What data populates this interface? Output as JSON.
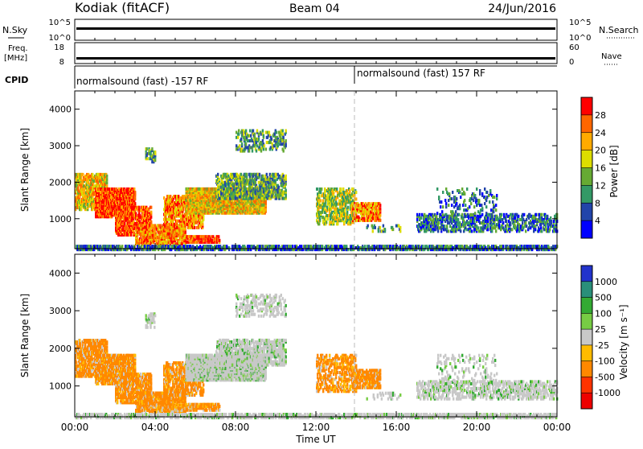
{
  "header": {
    "station": "Kodiak (fitACF)",
    "beam": "Beam 04",
    "date": "24/Jun/2016"
  },
  "panels": {
    "nsky_label": "N.Sky",
    "nsky_ticks": [
      "10^5",
      "10^0"
    ],
    "nsearch_label": "N.Search",
    "nsearch_ticks": [
      "10^5",
      "10^0"
    ],
    "freq_label": "Freq.",
    "freq_unit": "[MHz]",
    "freq_ticks": [
      "18",
      "8"
    ],
    "nave_label": "Nave",
    "nave_ticks": [
      "60",
      "0"
    ],
    "cpid_label": "CPID",
    "cpid_segments": [
      "normalsound (fast) -157 RF",
      "normalsound (fast) 157 RF"
    ]
  },
  "chart_data": [
    {
      "type": "heatmap",
      "name": "power",
      "ylabel": "Slant Range [km]",
      "yticks": [
        "4000",
        "3000",
        "2000",
        "1000"
      ],
      "ylim": [
        180,
        4500
      ],
      "colorbar_label": "Power [dB]",
      "colorbar_ticks": [
        "28",
        "24",
        "20",
        "16",
        "12",
        "8",
        "4"
      ],
      "colorbar_colors": [
        "#ff0000",
        "#ff6600",
        "#ffaa00",
        "#dddd00",
        "#66aa33",
        "#339966",
        "#2244aa",
        "#0000ff"
      ]
    },
    {
      "type": "heatmap",
      "name": "velocity",
      "ylabel": "Slant Range [km]",
      "yticks": [
        "4000",
        "3000",
        "2000",
        "1000"
      ],
      "ylim": [
        180,
        4500
      ],
      "colorbar_label": "Velocity [m s⁻¹]",
      "colorbar_ticks": [
        "1000",
        "500",
        "100",
        "25",
        "-25",
        "-100",
        "-500",
        "-1000"
      ],
      "colorbar_colors": [
        "#2233cc",
        "#2a8f7a",
        "#33aa33",
        "#77cc44",
        "#c8c8c8",
        "#ffbb00",
        "#ff8800",
        "#ff3300",
        "#ee0000"
      ]
    }
  ],
  "xaxis": {
    "ticks": [
      "00:00",
      "04:00",
      "08:00",
      "12:00",
      "16:00",
      "20:00",
      "00:00"
    ],
    "label": "Time UT"
  }
}
